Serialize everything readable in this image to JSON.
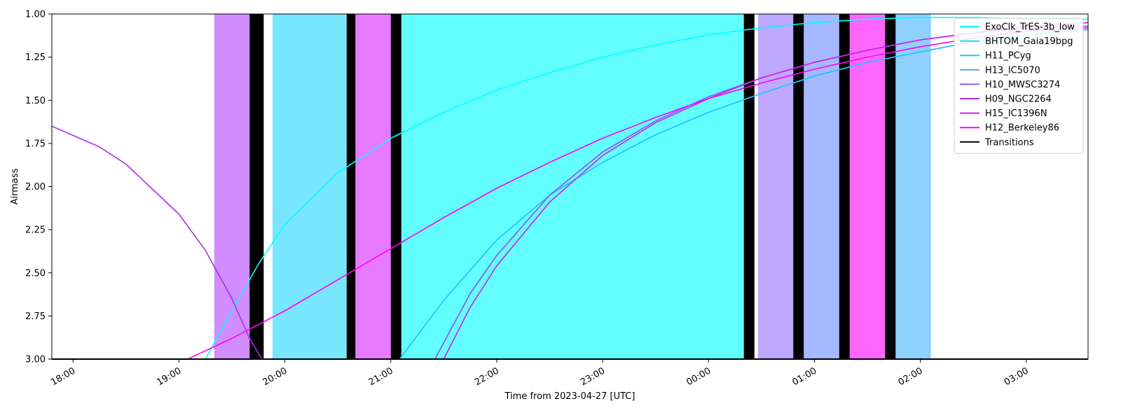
{
  "chart_data": {
    "type": "line",
    "title": "",
    "xlabel": "Time from 2023-04-27 [UTC]",
    "ylabel": "Airmass",
    "x_ticks": [
      "18:00",
      "19:00",
      "20:00",
      "21:00",
      "22:00",
      "23:00",
      "00:00",
      "01:00",
      "02:00",
      "03:00"
    ],
    "y_ticks": [
      "1.00",
      "1.25",
      "1.50",
      "1.75",
      "2.00",
      "2.25",
      "2.50",
      "2.75",
      "3.00"
    ],
    "xlim": [
      "2023-04-26 17:48",
      "2023-04-27 03:35"
    ],
    "ylim": [
      3.0,
      1.0
    ],
    "y_inverted": true,
    "legend_position": "top-right",
    "series": [
      {
        "name": "ExoClk_TrES-3b_low",
        "color": "#00ffff",
        "points": [
          [
            "19:15",
            3.0
          ],
          [
            "19:30",
            2.72
          ],
          [
            "19:45",
            2.45
          ],
          [
            "20:00",
            2.22
          ],
          [
            "20:30",
            1.92
          ],
          [
            "21:00",
            1.72
          ],
          [
            "21:30",
            1.57
          ],
          [
            "22:00",
            1.44
          ],
          [
            "22:30",
            1.34
          ],
          [
            "23:00",
            1.25
          ],
          [
            "23:30",
            1.18
          ],
          [
            "00:00",
            1.12
          ],
          [
            "00:30",
            1.08
          ],
          [
            "01:00",
            1.05
          ],
          [
            "01:30",
            1.03
          ],
          [
            "02:00",
            1.02
          ],
          [
            "02:30",
            1.02
          ],
          [
            "03:00",
            1.03
          ],
          [
            "03:35",
            1.03
          ]
        ]
      },
      {
        "name": "BHTOM_Gaia19bpg",
        "color": "#28d7ff",
        "points": [
          [
            "21:05",
            3.0
          ],
          [
            "21:30",
            2.66
          ],
          [
            "22:00",
            2.31
          ],
          [
            "22:30",
            2.05
          ],
          [
            "23:00",
            1.86
          ],
          [
            "23:30",
            1.7
          ],
          [
            "00:00",
            1.57
          ],
          [
            "00:30",
            1.46
          ],
          [
            "01:00",
            1.36
          ],
          [
            "01:30",
            1.28
          ],
          [
            "02:00",
            1.22
          ],
          [
            "02:30",
            1.16
          ],
          [
            "03:00",
            1.12
          ],
          [
            "03:35",
            1.09
          ]
        ]
      },
      {
        "name": "H11_PCyg",
        "color": "#1ec4ff",
        "points": [
          [
            "21:05",
            3.0
          ],
          [
            "21:30",
            2.66
          ],
          [
            "22:00",
            2.31
          ],
          [
            "22:30",
            2.05
          ],
          [
            "23:00",
            1.86
          ],
          [
            "23:30",
            1.7
          ],
          [
            "00:00",
            1.57
          ],
          [
            "00:30",
            1.46
          ],
          [
            "01:00",
            1.36
          ],
          [
            "01:30",
            1.28
          ],
          [
            "02:00",
            1.22
          ],
          [
            "02:30",
            1.16
          ],
          [
            "03:00",
            1.12
          ],
          [
            "03:35",
            1.09
          ]
        ]
      },
      {
        "name": "H13_IC5070",
        "color": "#5f9bea",
        "points": [
          [
            "21:25",
            3.0
          ],
          [
            "21:45",
            2.62
          ],
          [
            "22:00",
            2.4
          ],
          [
            "22:30",
            2.05
          ],
          [
            "23:00",
            1.8
          ],
          [
            "23:30",
            1.62
          ],
          [
            "00:00",
            1.48
          ],
          [
            "00:30",
            1.37
          ],
          [
            "01:00",
            1.28
          ],
          [
            "01:30",
            1.21
          ],
          [
            "02:00",
            1.15
          ],
          [
            "02:30",
            1.11
          ],
          [
            "03:00",
            1.08
          ],
          [
            "03:35",
            1.07
          ]
        ]
      },
      {
        "name": "H10_MWSC3274",
        "color": "#8a5cf5",
        "points": [
          [
            "21:25",
            3.0
          ],
          [
            "21:45",
            2.62
          ],
          [
            "22:00",
            2.4
          ],
          [
            "22:30",
            2.05
          ],
          [
            "23:00",
            1.8
          ],
          [
            "23:30",
            1.62
          ],
          [
            "00:00",
            1.48
          ],
          [
            "00:30",
            1.37
          ],
          [
            "01:00",
            1.28
          ],
          [
            "01:30",
            1.21
          ],
          [
            "02:00",
            1.15
          ],
          [
            "02:30",
            1.11
          ],
          [
            "03:00",
            1.08
          ],
          [
            "03:35",
            1.07
          ]
        ]
      },
      {
        "name": "H09_NGC2264",
        "color": "#a92eee",
        "points": [
          [
            "17:48",
            1.65
          ],
          [
            "18:15",
            1.77
          ],
          [
            "18:30",
            1.87
          ],
          [
            "19:00",
            2.16
          ],
          [
            "19:15",
            2.37
          ],
          [
            "19:30",
            2.65
          ],
          [
            "19:40",
            2.88
          ],
          [
            "19:47",
            3.0
          ]
        ]
      },
      {
        "name": "H15_IC1396N",
        "color": "#d21fe8",
        "points": [
          [
            "21:30",
            3.0
          ],
          [
            "21:45",
            2.7
          ],
          [
            "22:00",
            2.46
          ],
          [
            "22:30",
            2.09
          ],
          [
            "23:00",
            1.82
          ],
          [
            "23:30",
            1.63
          ],
          [
            "00:00",
            1.49
          ],
          [
            "00:30",
            1.37
          ],
          [
            "01:00",
            1.28
          ],
          [
            "01:30",
            1.21
          ],
          [
            "02:00",
            1.15
          ],
          [
            "02:30",
            1.11
          ],
          [
            "03:00",
            1.07
          ],
          [
            "03:35",
            1.05
          ]
        ]
      },
      {
        "name": "H12_Berkeley86",
        "color": "#ff00ff",
        "points": [
          [
            "19:05",
            3.0
          ],
          [
            "19:30",
            2.88
          ],
          [
            "20:00",
            2.72
          ],
          [
            "20:30",
            2.54
          ],
          [
            "21:00",
            2.36
          ],
          [
            "21:30",
            2.18
          ],
          [
            "22:00",
            2.01
          ],
          [
            "22:30",
            1.86
          ],
          [
            "23:00",
            1.72
          ],
          [
            "23:30",
            1.6
          ],
          [
            "00:00",
            1.49
          ],
          [
            "00:30",
            1.4
          ],
          [
            "01:00",
            1.32
          ],
          [
            "01:30",
            1.25
          ],
          [
            "02:00",
            1.19
          ],
          [
            "02:30",
            1.14
          ],
          [
            "03:00",
            1.1
          ],
          [
            "03:35",
            1.08
          ]
        ]
      },
      {
        "name": "Transitions",
        "color": "#000000",
        "points": []
      }
    ],
    "observation_blocks": [
      {
        "start": "19:20",
        "end": "19:40",
        "color": "#d18cff"
      },
      {
        "start": "19:40",
        "end": "19:48",
        "color": "#000000"
      },
      {
        "start": "19:53",
        "end": "20:35",
        "color": "#78e6ff"
      },
      {
        "start": "20:35",
        "end": "20:40",
        "color": "#000000"
      },
      {
        "start": "20:40",
        "end": "21:00",
        "color": "#e87aff"
      },
      {
        "start": "21:00",
        "end": "21:06",
        "color": "#000000"
      },
      {
        "start": "21:06",
        "end": "00:20",
        "color": "#63ffff"
      },
      {
        "start": "00:20",
        "end": "00:26",
        "color": "#000000"
      },
      {
        "start": "00:28",
        "end": "00:48",
        "color": "#bfa8ff"
      },
      {
        "start": "00:48",
        "end": "00:54",
        "color": "#000000"
      },
      {
        "start": "00:54",
        "end": "01:14",
        "color": "#a6b8ff"
      },
      {
        "start": "01:14",
        "end": "01:20",
        "color": "#000000"
      },
      {
        "start": "01:20",
        "end": "01:40",
        "color": "#ff66ff"
      },
      {
        "start": "01:40",
        "end": "01:46",
        "color": "#000000"
      },
      {
        "start": "01:46",
        "end": "02:06",
        "color": "#90d0ff"
      }
    ]
  }
}
